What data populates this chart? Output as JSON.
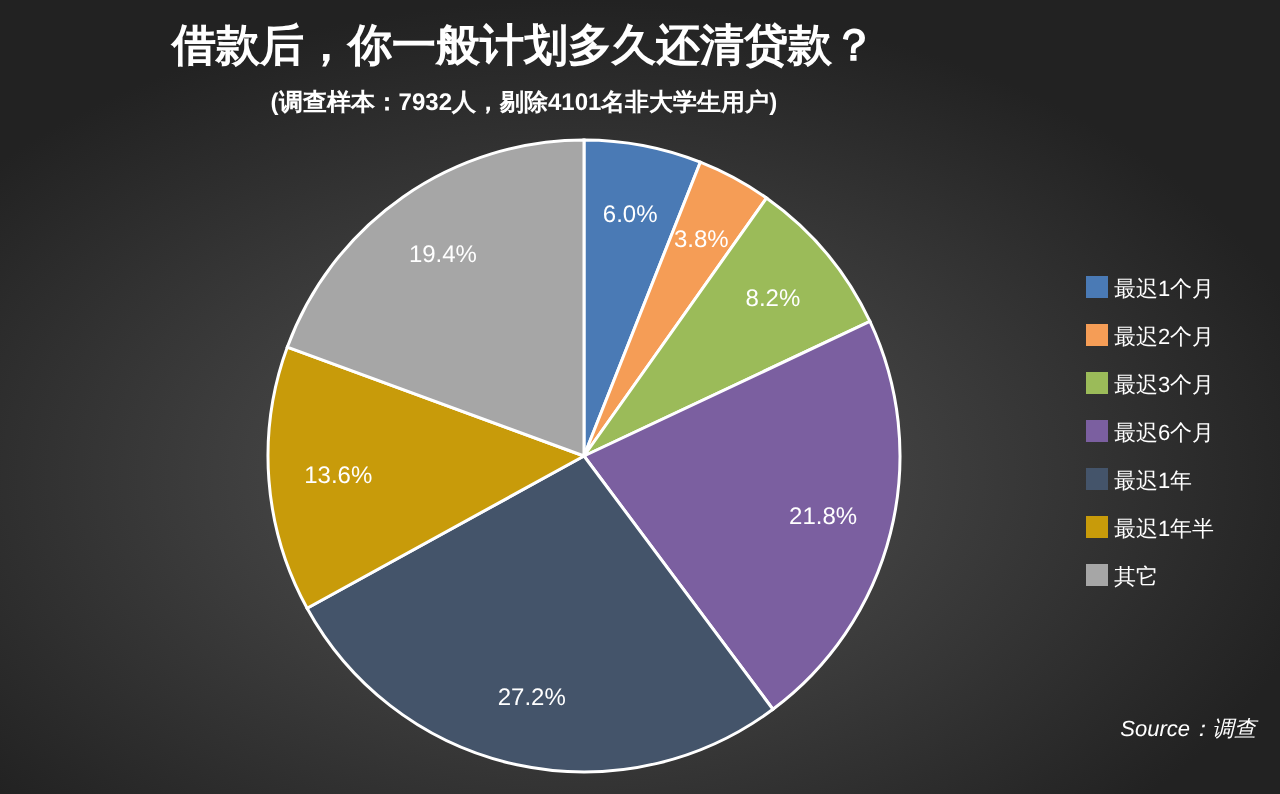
{
  "chart_data": {
    "type": "pie",
    "title": "借款后，你一般计划多久还清贷款？",
    "subtitle": "(调查样本：7932人，剔除4101名非大学生用户)",
    "categories": [
      "最迟1个月",
      "最迟2个月",
      "最迟3个月",
      "最迟6个月",
      "最迟1年",
      "最迟1年半",
      "其它"
    ],
    "values": [
      6.0,
      3.8,
      8.2,
      21.8,
      27.2,
      13.6,
      19.4
    ],
    "value_labels": [
      "6.0%",
      "3.8%",
      "8.2%",
      "21.8%",
      "27.2%",
      "13.6%",
      "19.4%"
    ],
    "colors": [
      "#4a7ab5",
      "#f59d56",
      "#9bbb59",
      "#7b5fa0",
      "#44546a",
      "#c89b0a",
      "#a6a6a6"
    ],
    "legend": "right",
    "annotations": [
      "Source：调查"
    ]
  }
}
